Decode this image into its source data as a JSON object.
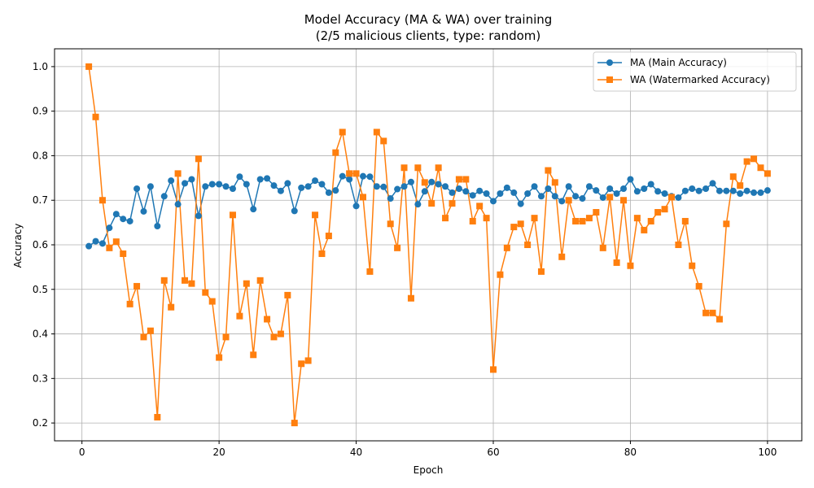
{
  "chart_data": {
    "type": "line",
    "title": "Model Accuracy (MA & WA) over training",
    "subtitle": "(2/5 malicious clients, type: random)",
    "xlabel": "Epoch",
    "ylabel": "Accuracy",
    "xlim": [
      -4,
      105
    ],
    "ylim": [
      0.16,
      1.04
    ],
    "xticks": [
      0,
      20,
      40,
      60,
      80,
      100
    ],
    "yticks": [
      0.2,
      0.3,
      0.4,
      0.5,
      0.6,
      0.7,
      0.8,
      0.9,
      1.0
    ],
    "grid": true,
    "legend_position": "top-right",
    "x": [
      1,
      2,
      3,
      4,
      5,
      6,
      7,
      8,
      9,
      10,
      11,
      12,
      13,
      14,
      15,
      16,
      17,
      18,
      19,
      20,
      21,
      22,
      23,
      24,
      25,
      26,
      27,
      28,
      29,
      30,
      31,
      32,
      33,
      34,
      35,
      36,
      37,
      38,
      39,
      40,
      41,
      42,
      43,
      44,
      45,
      46,
      47,
      48,
      49,
      50,
      51,
      52,
      53,
      54,
      55,
      56,
      57,
      58,
      59,
      60,
      61,
      62,
      63,
      64,
      65,
      66,
      67,
      68,
      69,
      70,
      71,
      72,
      73,
      74,
      75,
      76,
      77,
      78,
      79,
      80,
      81,
      82,
      83,
      84,
      85,
      86,
      87,
      88,
      89,
      90,
      91,
      92,
      93,
      94,
      95,
      96,
      97,
      98,
      99,
      100
    ],
    "series": [
      {
        "name": "MA (Main Accuracy)",
        "color": "#1f77b4",
        "marker": "circle",
        "values": [
          0.597,
          0.608,
          0.603,
          0.638,
          0.669,
          0.658,
          0.653,
          0.726,
          0.675,
          0.731,
          0.642,
          0.709,
          0.744,
          0.691,
          0.738,
          0.747,
          0.665,
          0.731,
          0.736,
          0.736,
          0.731,
          0.726,
          0.753,
          0.736,
          0.68,
          0.747,
          0.749,
          0.733,
          0.721,
          0.738,
          0.676,
          0.728,
          0.731,
          0.744,
          0.736,
          0.717,
          0.722,
          0.754,
          0.747,
          0.687,
          0.754,
          0.753,
          0.731,
          0.73,
          0.704,
          0.725,
          0.731,
          0.741,
          0.691,
          0.72,
          0.741,
          0.736,
          0.731,
          0.717,
          0.726,
          0.72,
          0.711,
          0.721,
          0.715,
          0.698,
          0.715,
          0.728,
          0.717,
          0.692,
          0.715,
          0.731,
          0.709,
          0.726,
          0.709,
          0.698,
          0.731,
          0.709,
          0.704,
          0.731,
          0.722,
          0.706,
          0.726,
          0.715,
          0.726,
          0.747,
          0.72,
          0.726,
          0.736,
          0.72,
          0.715,
          0.709,
          0.706,
          0.721,
          0.726,
          0.721,
          0.726,
          0.738,
          0.721,
          0.721,
          0.721,
          0.715,
          0.721,
          0.717,
          0.717,
          0.722
        ]
      },
      {
        "name": "WA (Watermarked Accuracy)",
        "color": "#ff7f0e",
        "marker": "square",
        "values": [
          1.0,
          0.887,
          0.7,
          0.593,
          0.607,
          0.58,
          0.467,
          0.507,
          0.393,
          0.407,
          0.213,
          0.52,
          0.46,
          0.76,
          0.52,
          0.513,
          0.793,
          0.493,
          0.473,
          0.347,
          0.393,
          0.667,
          0.44,
          0.513,
          0.353,
          0.52,
          0.433,
          0.393,
          0.4,
          0.487,
          0.2,
          0.333,
          0.34,
          0.667,
          0.58,
          0.62,
          0.807,
          0.853,
          0.76,
          0.76,
          0.707,
          0.54,
          0.853,
          0.833,
          0.647,
          0.593,
          0.773,
          0.48,
          0.773,
          0.74,
          0.693,
          0.773,
          0.66,
          0.693,
          0.747,
          0.747,
          0.653,
          0.687,
          0.66,
          0.32,
          0.533,
          0.593,
          0.64,
          0.647,
          0.6,
          0.66,
          0.54,
          0.767,
          0.74,
          0.573,
          0.7,
          0.653,
          0.653,
          0.66,
          0.673,
          0.593,
          0.707,
          0.56,
          0.7,
          0.553,
          0.66,
          0.633,
          0.653,
          0.673,
          0.68,
          0.707,
          0.6,
          0.653,
          0.553,
          0.507,
          0.447,
          0.447,
          0.433,
          0.647,
          0.753,
          0.733,
          0.787,
          0.793,
          0.773,
          0.76
        ]
      }
    ]
  }
}
